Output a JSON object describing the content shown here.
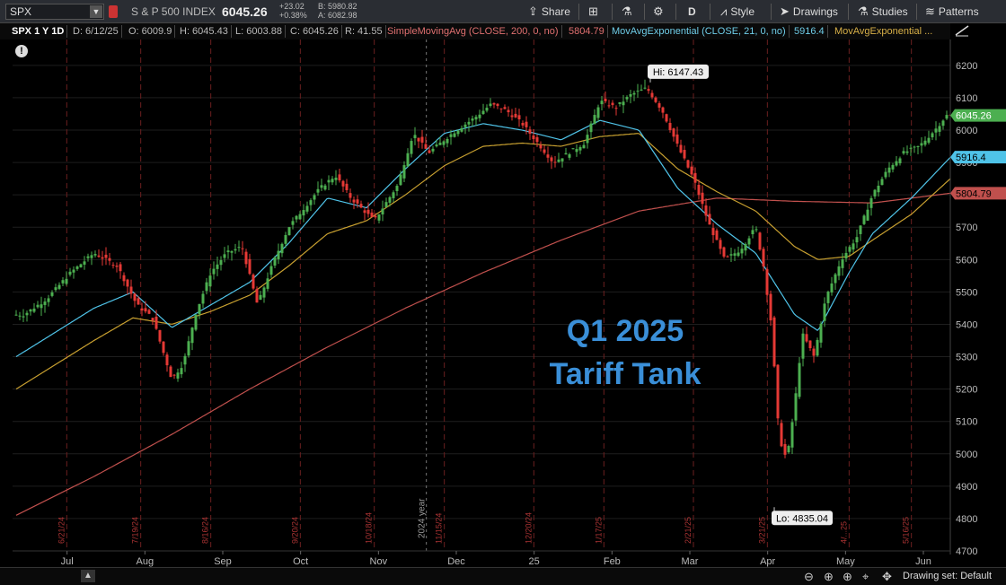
{
  "header": {
    "symbol": "SPX",
    "index_name": "S & P 500 INDEX",
    "price": "6045.26",
    "change": "+23.02",
    "change_pct": "+0.38%",
    "bid": "B: 5980.82",
    "ask": "A: 6082.98",
    "share_label": "Share",
    "aggregation": "D",
    "style_label": "Style",
    "drawings_label": "Drawings",
    "studies_label": "Studies",
    "patterns_label": "Patterns"
  },
  "study_bar": {
    "period": "SPX 1 Y 1D",
    "date": "D: 6/12/25",
    "open": "O: 6009.9",
    "high": "H: 6045.43",
    "low": "L: 6003.88",
    "close": "C: 6045.26",
    "range": "R: 41.55",
    "sma_label": "SimpleMovingAvg (CLOSE, 200, 0, no)",
    "sma_value": "5804.79",
    "ema21_label": "MovAvgExponential (CLOSE, 21, 0, no)",
    "ema21_value": "5916.4",
    "ema_second_label": "MovAvgExponential ..."
  },
  "footer": {
    "drawing_set": "Drawing set: Default"
  },
  "colors": {
    "up": "#4caf50",
    "down": "#e53935",
    "sma200": "#c0504d",
    "ema21": "#4fc3e8",
    "ema_slow": "#c8a030",
    "annotation": "#3a8fd8",
    "price_tag": "#4caf50",
    "ema21_tag": "#4fc3e8",
    "sma_tag": "#c0504d"
  },
  "icons": [
    "share-icon",
    "layout-icon",
    "flask-icon",
    "gear-icon",
    "style-icon",
    "cursor-icon",
    "studies-flask-icon",
    "patterns-icon",
    "pencil-icon",
    "info-icon",
    "zoom-out-icon",
    "zoom-in-icon",
    "crosshair-icon",
    "drag-icon",
    "drawing-icon"
  ],
  "chart_data": {
    "type": "candlestick",
    "symbol": "SPX",
    "timeframe": "1 Y 1D",
    "ylim": [
      4700,
      6280
    ],
    "y_ticks": [
      4700,
      4800,
      4900,
      5000,
      5100,
      5200,
      5300,
      5400,
      5500,
      5600,
      5700,
      5800,
      5900,
      6000,
      6100,
      6200
    ],
    "x_labels": [
      "Jul",
      "Aug",
      "Sep",
      "Oct",
      "Nov",
      "Dec",
      "25",
      "Feb",
      "Mar",
      "Apr",
      "May",
      "Jun"
    ],
    "x_label_months": [
      1,
      2,
      3,
      4,
      5,
      6,
      7,
      8,
      9,
      10,
      11,
      12
    ],
    "date_markers": [
      "6/21/24",
      "7/19/24",
      "8/16/24",
      "9/20/24",
      "10/18/24",
      "11/15/24",
      "12/20/24",
      "1/17/25",
      "2/21/25",
      "3/21/25",
      "4/...25",
      "5/16/25"
    ],
    "date_marker_months": [
      0.65,
      1.6,
      2.5,
      3.65,
      4.6,
      5.5,
      6.65,
      7.55,
      8.7,
      9.65,
      10.7,
      11.5
    ],
    "year_marker": "2024 year",
    "year_marker_month": 7.0,
    "high_label": "Hi: 6147.43",
    "low_label": "Lo: 4835.04",
    "high_value": 6147.43,
    "low_value": 4835.04,
    "last_price": "6045.26",
    "ema21_last": "5916.4",
    "sma200_last": "5804.79",
    "annotation": [
      "Q1 2025",
      "Tariff Tank"
    ],
    "close_series": {
      "months": [
        0.1,
        0.4,
        0.7,
        1.0,
        1.3,
        1.55,
        1.75,
        2.0,
        2.15,
        2.3,
        2.5,
        2.7,
        2.9,
        3.1,
        3.3,
        3.5,
        3.7,
        3.9,
        4.1,
        4.3,
        4.6,
        4.9,
        5.1,
        5.3,
        5.6,
        5.9,
        6.1,
        6.3,
        6.5,
        6.7,
        6.9,
        7.1,
        7.3,
        7.5,
        7.7,
        7.9,
        8.1,
        8.3,
        8.5,
        8.7,
        8.9,
        9.1,
        9.3,
        9.5,
        9.6,
        9.7,
        9.8,
        9.9,
        10.0,
        10.1,
        10.25,
        10.4,
        10.6,
        10.8,
        11.0,
        11.2,
        11.4,
        11.6,
        11.8,
        11.95
      ],
      "values": [
        5430,
        5480,
        5560,
        5620,
        5580,
        5460,
        5420,
        5230,
        5280,
        5430,
        5560,
        5620,
        5640,
        5460,
        5590,
        5700,
        5760,
        5820,
        5860,
        5790,
        5720,
        5830,
        5990,
        5930,
        5990,
        6040,
        6080,
        6060,
        6020,
        5960,
        5900,
        5930,
        5960,
        6090,
        6070,
        6110,
        6130,
        6060,
        5950,
        5850,
        5710,
        5600,
        5630,
        5700,
        5580,
        5400,
        5050,
        4980,
        5150,
        5370,
        5300,
        5480,
        5600,
        5670,
        5800,
        5880,
        5930,
        5950,
        6000,
        6045
      ]
    },
    "sma200": {
      "months": [
        0,
        1,
        2,
        3,
        4,
        5,
        6,
        7,
        8,
        9,
        10,
        11,
        12
      ],
      "values": [
        4810,
        4930,
        5060,
        5200,
        5330,
        5450,
        5560,
        5660,
        5750,
        5790,
        5780,
        5775,
        5805
      ]
    },
    "ema21": {
      "months": [
        0,
        1,
        1.5,
        2.0,
        2.5,
        3,
        3.5,
        4,
        4.5,
        5,
        5.5,
        6,
        6.5,
        7,
        7.5,
        8,
        8.5,
        9,
        9.5,
        10,
        10.3,
        10.7,
        11,
        11.5,
        12
      ],
      "values": [
        5300,
        5450,
        5500,
        5390,
        5460,
        5530,
        5650,
        5790,
        5760,
        5880,
        5990,
        6020,
        6000,
        5970,
        6030,
        6000,
        5820,
        5710,
        5620,
        5430,
        5380,
        5560,
        5680,
        5790,
        5916
      ]
    },
    "ema_slow": {
      "months": [
        0,
        1,
        1.5,
        2.0,
        2.5,
        3,
        3.5,
        4,
        4.5,
        5,
        5.5,
        6,
        6.5,
        7,
        7.5,
        8,
        8.5,
        9,
        9.5,
        10,
        10.3,
        10.7,
        11,
        11.5,
        12
      ],
      "values": [
        5200,
        5350,
        5420,
        5400,
        5440,
        5490,
        5580,
        5680,
        5720,
        5800,
        5890,
        5950,
        5960,
        5950,
        5980,
        5990,
        5880,
        5810,
        5750,
        5640,
        5600,
        5610,
        5660,
        5740,
        5850
      ]
    }
  }
}
